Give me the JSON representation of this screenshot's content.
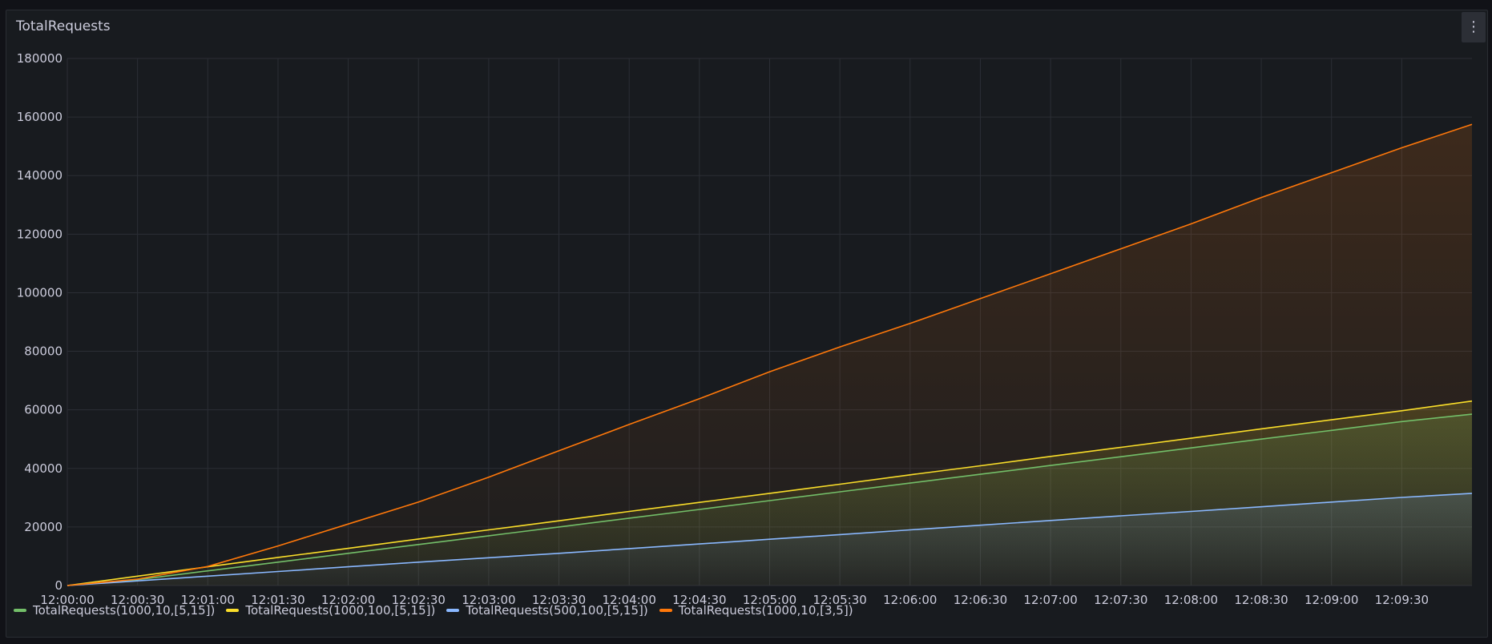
{
  "panel": {
    "title": "TotalRequests",
    "menu_icon": "kebab-menu-icon"
  },
  "chart_data": {
    "type": "line",
    "title": "TotalRequests",
    "xlabel": "",
    "ylabel": "",
    "x": [
      "12:00:00",
      "12:00:30",
      "12:01:00",
      "12:01:30",
      "12:02:00",
      "12:02:30",
      "12:03:00",
      "12:03:30",
      "12:04:00",
      "12:04:30",
      "12:05:00",
      "12:05:30",
      "12:06:00",
      "12:06:30",
      "12:07:00",
      "12:07:30",
      "12:08:00",
      "12:08:30",
      "12:09:00",
      "12:09:30",
      "12:10:00"
    ],
    "x_ticks": [
      "12:00:00",
      "12:00:30",
      "12:01:00",
      "12:01:30",
      "12:02:00",
      "12:02:30",
      "12:03:00",
      "12:03:30",
      "12:04:00",
      "12:04:30",
      "12:05:00",
      "12:05:30",
      "12:06:00",
      "12:06:30",
      "12:07:00",
      "12:07:30",
      "12:08:00",
      "12:08:30",
      "12:09:00",
      "12:09:30"
    ],
    "y_ticks": [
      "0",
      "20000",
      "40000",
      "60000",
      "80000",
      "100000",
      "120000",
      "140000",
      "160000",
      "180000"
    ],
    "ylim": [
      0,
      180000
    ],
    "grid": true,
    "legend_position": "bottom-left",
    "series": [
      {
        "name": "TotalRequests(1000,10,[5,15])",
        "color": "#73bf69",
        "fill": "#73bf69",
        "values": [
          0,
          2000,
          5000,
          8000,
          11000,
          14000,
          17000,
          20000,
          23000,
          26000,
          29000,
          32000,
          35000,
          38000,
          41000,
          44000,
          47000,
          50000,
          53000,
          56000,
          58500
        ]
      },
      {
        "name": "TotalRequests(1000,100,[5,15])",
        "color": "#fade2a",
        "fill": "#fade2a",
        "values": [
          0,
          3200,
          6400,
          9600,
          12700,
          15900,
          19000,
          22100,
          25300,
          28400,
          31500,
          34600,
          37800,
          40900,
          44100,
          47200,
          50300,
          53500,
          56600,
          59700,
          63000
        ]
      },
      {
        "name": "TotalRequests(500,100,[5,15])",
        "color": "#8ab8ff",
        "fill": "#8ab8ff",
        "values": [
          0,
          1600,
          3200,
          4800,
          6400,
          8000,
          9500,
          11000,
          12600,
          14200,
          15800,
          17400,
          19000,
          20600,
          22200,
          23800,
          25300,
          26900,
          28500,
          30100,
          31500
        ]
      },
      {
        "name": "TotalRequests(1000,10,[3,5])",
        "color": "#ff780a",
        "fill": "#ff780a",
        "values": [
          0,
          2200,
          6500,
          13500,
          21000,
          28500,
          37000,
          46000,
          55000,
          63800,
          73000,
          81500,
          89500,
          98000,
          106500,
          115000,
          123500,
          132500,
          141000,
          149500,
          157500
        ]
      }
    ]
  }
}
